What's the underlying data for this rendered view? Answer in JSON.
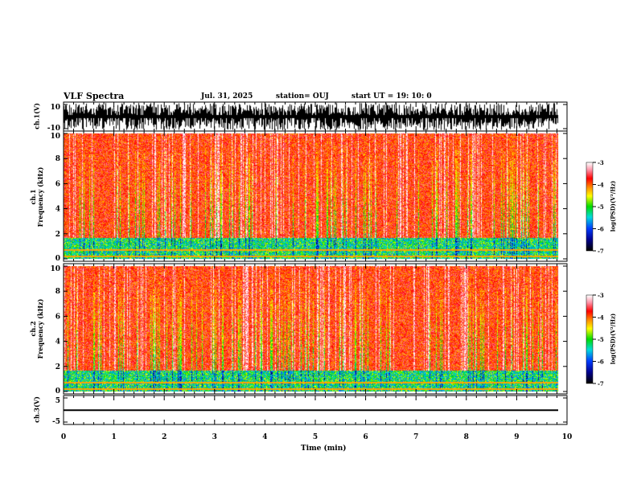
{
  "header": {
    "title": "VLF Spectra",
    "date": "Jul. 31, 2025",
    "station": "station= OUJ",
    "start_ut": "start  UT =   19: 10: 0"
  },
  "chart_data": {
    "type": "heatmap",
    "x_axis": {
      "label": "Time  (min)",
      "range": [
        0,
        10
      ],
      "ticks": [
        "0",
        "1",
        "2",
        "3",
        "4",
        "5",
        "6",
        "7",
        "8",
        "9",
        "10"
      ],
      "minor_step": 0.2,
      "data_end": 9.83
    },
    "panels": [
      {
        "id": "ch1_wave",
        "type": "line",
        "ylabel": "ch.1(V)",
        "ylim": [
          -10,
          10
        ],
        "yticks": [
          "10",
          "-10"
        ],
        "description_values": {
          "amplitude_min": -10,
          "amplitude_max": 10
        }
      },
      {
        "id": "ch1_spec",
        "type": "heatmap",
        "ylabel_top": "ch.1",
        "ylabel": "Frequency  (kHz)",
        "ylim": [
          0,
          10
        ],
        "yticks": [
          "0",
          "2",
          "4",
          "6",
          "8",
          "10"
        ],
        "colorbar": {
          "label": "log(PSD)(V²/Hz)",
          "range": [
            -7,
            -3
          ],
          "ticks": [
            "-3",
            "-4",
            "-5",
            "-6",
            "-7"
          ]
        }
      },
      {
        "id": "ch2_spec",
        "type": "heatmap",
        "ylabel_top": "ch.2",
        "ylabel": "Frequency  (kHz)",
        "ylim": [
          0,
          10
        ],
        "yticks": [
          "0",
          "2",
          "4",
          "6",
          "8",
          "10"
        ],
        "colorbar": {
          "label": "log(PSD)(V²/Hz)",
          "range": [
            -7,
            -3
          ],
          "ticks": [
            "-3",
            "-4",
            "-5",
            "-6",
            "-7"
          ]
        }
      },
      {
        "id": "ch3_wave",
        "type": "line",
        "ylabel": "ch.3(V)",
        "ylim": [
          -5,
          5
        ],
        "yticks": [
          "5",
          "-5"
        ],
        "constant_value": -0.1
      }
    ]
  },
  "colors": {
    "axis": "#000000",
    "trace": "#000000"
  }
}
